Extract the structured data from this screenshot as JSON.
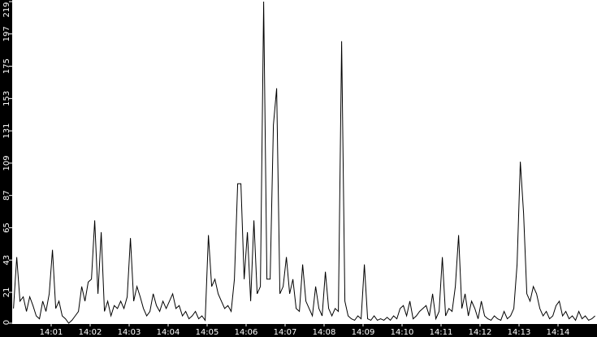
{
  "chart_data": {
    "type": "line",
    "title": "",
    "xlabel": "",
    "ylabel": "",
    "x_start": "14:00:00",
    "x_end": "14:15:00",
    "sample_interval_seconds": 5,
    "ylim": [
      0,
      219
    ],
    "y_ticks": [
      0,
      21,
      43,
      65,
      87,
      109,
      131,
      153,
      175,
      197,
      219
    ],
    "x_ticks": [
      "14:01",
      "14:02",
      "14:03",
      "14:04",
      "14:05",
      "14:06",
      "14:07",
      "14:08",
      "14:09",
      "14:10",
      "14:11",
      "14:12",
      "14:13",
      "14:14"
    ],
    "grid": false,
    "colors": {
      "background": "#ffffff",
      "line": "#000000",
      "axis_background": "#000000",
      "axis_text": "#ffffff"
    },
    "series": [
      {
        "values": [
          10,
          45,
          15,
          18,
          8,
          18,
          12,
          5,
          3,
          15,
          8,
          20,
          50,
          10,
          15,
          5,
          3,
          0,
          2,
          5,
          8,
          25,
          15,
          28,
          30,
          70,
          20,
          62,
          8,
          15,
          5,
          12,
          10,
          15,
          10,
          18,
          58,
          15,
          25,
          18,
          10,
          5,
          8,
          20,
          12,
          8,
          15,
          10,
          15,
          20,
          10,
          12,
          5,
          8,
          3,
          5,
          8,
          3,
          5,
          2,
          60,
          25,
          30,
          20,
          15,
          10,
          12,
          8,
          30,
          95,
          95,
          30,
          62,
          15,
          70,
          20,
          25,
          219,
          30,
          30,
          135,
          160,
          20,
          25,
          45,
          20,
          30,
          10,
          8,
          40,
          15,
          10,
          5,
          25,
          10,
          5,
          35,
          10,
          5,
          10,
          8,
          192,
          15,
          5,
          3,
          2,
          5,
          3,
          40,
          3,
          2,
          5,
          2,
          3,
          2,
          4,
          2,
          5,
          3,
          10,
          12,
          5,
          15,
          3,
          5,
          8,
          10,
          12,
          5,
          20,
          3,
          8,
          45,
          5,
          10,
          8,
          25,
          60,
          10,
          20,
          5,
          15,
          10,
          3,
          15,
          5,
          3,
          2,
          5,
          3,
          2,
          8,
          3,
          5,
          10,
          40,
          110,
          75,
          20,
          15,
          25,
          20,
          10,
          5,
          8,
          3,
          5,
          12,
          15,
          5,
          8,
          3,
          5,
          2,
          8,
          3,
          5,
          2,
          3,
          5
        ]
      }
    ]
  }
}
